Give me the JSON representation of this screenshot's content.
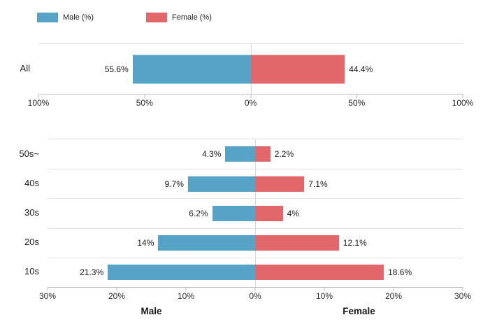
{
  "legend": {
    "items": [
      {
        "label": "Male (%)",
        "color": "#57A3C8"
      },
      {
        "label": "Female (%)",
        "color": "#E2676B"
      }
    ]
  },
  "colors": {
    "male": "#57A3C8",
    "female": "#E2676B",
    "zero_line": "#D6D6D6",
    "row_separator": "#E4E4E4",
    "axis_line": "#BDBDBD"
  },
  "chart_data": [
    {
      "type": "bar",
      "subtype": "diverging horizontal (population pyramid)",
      "title": "",
      "categories": [
        "All"
      ],
      "series": [
        {
          "name": "Male (%)",
          "side": "left",
          "color": "#57A3C8",
          "values": [
            55.6
          ],
          "labels": [
            "55.6%"
          ]
        },
        {
          "name": "Female (%)",
          "side": "right",
          "color": "#E2676B",
          "values": [
            44.4
          ],
          "labels": [
            "44.4%"
          ]
        }
      ],
      "axis_max": 100,
      "ticks": [
        {
          "value": -100,
          "label": "100%"
        },
        {
          "value": -50,
          "label": "50%"
        },
        {
          "value": 0,
          "label": "0%"
        },
        {
          "value": 50,
          "label": "50%"
        },
        {
          "value": 100,
          "label": "100%"
        }
      ],
      "legend_position": "top",
      "grid": "zero line only"
    },
    {
      "type": "bar",
      "subtype": "diverging horizontal (population pyramid)",
      "title": "",
      "categories": [
        "50s~",
        "40s",
        "30s",
        "20s",
        "10s"
      ],
      "series": [
        {
          "name": "Male (%)",
          "side": "left",
          "color": "#57A3C8",
          "values": [
            4.3,
            9.7,
            6.2,
            14,
            21.3
          ],
          "labels": [
            "4.3%",
            "9.7%",
            "6.2%",
            "14%",
            "21.3%"
          ]
        },
        {
          "name": "Female (%)",
          "side": "right",
          "color": "#E2676B",
          "values": [
            2.2,
            7.1,
            4,
            12.1,
            18.6
          ],
          "labels": [
            "2.2%",
            "7.1%",
            "4%",
            "12.1%",
            "18.6%"
          ]
        }
      ],
      "axis_max": 30,
      "ticks": [
        {
          "value": -30,
          "label": "30%"
        },
        {
          "value": -20,
          "label": "20%"
        },
        {
          "value": -10,
          "label": "10%"
        },
        {
          "value": 0,
          "label": "0%"
        },
        {
          "value": 10,
          "label": "10%"
        },
        {
          "value": 20,
          "label": "20%"
        },
        {
          "value": 30,
          "label": "30%"
        }
      ],
      "xlabel_left": "Male",
      "xlabel_right": "Female",
      "grid": "row separators + zero line"
    }
  ]
}
